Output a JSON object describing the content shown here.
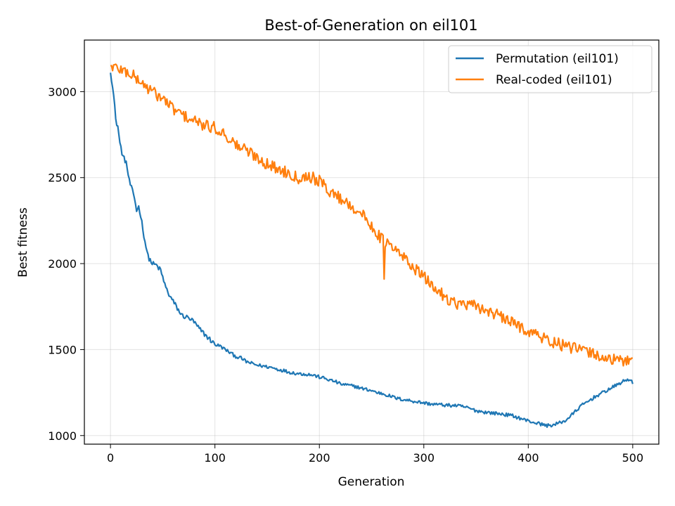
{
  "chart_data": {
    "type": "line",
    "title": "Best-of-Generation on eil101",
    "xlabel": "Generation",
    "ylabel": "Best fitness",
    "xlim": [
      -25,
      525
    ],
    "ylim": [
      950,
      3300
    ],
    "xticks": [
      0,
      100,
      200,
      300,
      400,
      500
    ],
    "yticks": [
      1000,
      1500,
      2000,
      2500,
      3000
    ],
    "grid": true,
    "legend_position": "top-right",
    "series": [
      {
        "name": "Permutation (eil101)",
        "color": "#1f77b4",
        "points": [
          [
            0,
            3110
          ],
          [
            2,
            3040
          ],
          [
            4,
            2920
          ],
          [
            5,
            2830
          ],
          [
            7,
            2800
          ],
          [
            9,
            2700
          ],
          [
            12,
            2620
          ],
          [
            15,
            2590
          ],
          [
            18,
            2480
          ],
          [
            21,
            2420
          ],
          [
            23,
            2380
          ],
          [
            25,
            2310
          ],
          [
            27,
            2330
          ],
          [
            29,
            2280
          ],
          [
            31,
            2200
          ],
          [
            33,
            2130
          ],
          [
            36,
            2040
          ],
          [
            40,
            2000
          ],
          [
            44,
            1990
          ],
          [
            48,
            1960
          ],
          [
            50,
            1920
          ],
          [
            53,
            1860
          ],
          [
            56,
            1820
          ],
          [
            60,
            1780
          ],
          [
            64,
            1740
          ],
          [
            68,
            1700
          ],
          [
            72,
            1690
          ],
          [
            76,
            1680
          ],
          [
            80,
            1660
          ],
          [
            85,
            1620
          ],
          [
            90,
            1590
          ],
          [
            95,
            1560
          ],
          [
            100,
            1530
          ],
          [
            105,
            1520
          ],
          [
            110,
            1500
          ],
          [
            115,
            1480
          ],
          [
            120,
            1460
          ],
          [
            125,
            1450
          ],
          [
            130,
            1430
          ],
          [
            135,
            1420
          ],
          [
            140,
            1410
          ],
          [
            145,
            1405
          ],
          [
            150,
            1400
          ],
          [
            155,
            1395
          ],
          [
            160,
            1385
          ],
          [
            165,
            1380
          ],
          [
            170,
            1370
          ],
          [
            175,
            1365
          ],
          [
            180,
            1360
          ],
          [
            185,
            1358
          ],
          [
            190,
            1355
          ],
          [
            193,
            1352
          ],
          [
            196,
            1348
          ],
          [
            200,
            1340
          ],
          [
            205,
            1333
          ],
          [
            210,
            1322
          ],
          [
            215,
            1315
          ],
          [
            220,
            1300
          ],
          [
            225,
            1295
          ],
          [
            230,
            1290
          ],
          [
            235,
            1285
          ],
          [
            240,
            1275
          ],
          [
            245,
            1268
          ],
          [
            250,
            1262
          ],
          [
            255,
            1250
          ],
          [
            260,
            1245
          ],
          [
            265,
            1235
          ],
          [
            270,
            1225
          ],
          [
            275,
            1215
          ],
          [
            280,
            1210
          ],
          [
            285,
            1205
          ],
          [
            290,
            1200
          ],
          [
            295,
            1195
          ],
          [
            300,
            1190
          ],
          [
            305,
            1185
          ],
          [
            310,
            1182
          ],
          [
            315,
            1180
          ],
          [
            320,
            1177
          ],
          [
            325,
            1175
          ],
          [
            330,
            1175
          ],
          [
            335,
            1170
          ],
          [
            340,
            1165
          ],
          [
            345,
            1155
          ],
          [
            350,
            1145
          ],
          [
            355,
            1140
          ],
          [
            360,
            1135
          ],
          [
            365,
            1132
          ],
          [
            370,
            1128
          ],
          [
            375,
            1125
          ],
          [
            380,
            1120
          ],
          [
            385,
            1115
          ],
          [
            390,
            1105
          ],
          [
            395,
            1095
          ],
          [
            400,
            1085
          ],
          [
            405,
            1077
          ],
          [
            410,
            1070
          ],
          [
            415,
            1062
          ],
          [
            418,
            1058
          ],
          [
            420,
            1060
          ],
          [
            425,
            1062
          ],
          [
            430,
            1075
          ],
          [
            435,
            1085
          ],
          [
            440,
            1110
          ],
          [
            445,
            1140
          ],
          [
            450,
            1170
          ],
          [
            455,
            1190
          ],
          [
            460,
            1210
          ],
          [
            465,
            1230
          ],
          [
            470,
            1245
          ],
          [
            475,
            1262
          ],
          [
            480,
            1278
          ],
          [
            485,
            1295
          ],
          [
            490,
            1312
          ],
          [
            495,
            1325
          ],
          [
            498,
            1328
          ],
          [
            500,
            1300
          ]
        ],
        "noise": 25
      },
      {
        "name": "Real-coded (eil101)",
        "color": "#ff7f0e",
        "points": [
          [
            0,
            3150
          ],
          [
            10,
            3130
          ],
          [
            20,
            3100
          ],
          [
            30,
            3050
          ],
          [
            40,
            3000
          ],
          [
            50,
            2960
          ],
          [
            60,
            2900
          ],
          [
            70,
            2860
          ],
          [
            80,
            2830
          ],
          [
            90,
            2800
          ],
          [
            100,
            2790
          ],
          [
            110,
            2750
          ],
          [
            120,
            2690
          ],
          [
            130,
            2660
          ],
          [
            140,
            2620
          ],
          [
            150,
            2580
          ],
          [
            160,
            2550
          ],
          [
            170,
            2530
          ],
          [
            180,
            2500
          ],
          [
            190,
            2510
          ],
          [
            200,
            2480
          ],
          [
            210,
            2420
          ],
          [
            220,
            2380
          ],
          [
            230,
            2340
          ],
          [
            240,
            2290
          ],
          [
            250,
            2220
          ],
          [
            260,
            2140
          ],
          [
            270,
            2090
          ],
          [
            280,
            2040
          ],
          [
            290,
            1980
          ],
          [
            300,
            1920
          ],
          [
            310,
            1860
          ],
          [
            320,
            1810
          ],
          [
            330,
            1770
          ],
          [
            340,
            1760
          ],
          [
            350,
            1750
          ],
          [
            360,
            1730
          ],
          [
            370,
            1700
          ],
          [
            380,
            1670
          ],
          [
            390,
            1640
          ],
          [
            400,
            1610
          ],
          [
            410,
            1580
          ],
          [
            420,
            1550
          ],
          [
            430,
            1530
          ],
          [
            440,
            1510
          ],
          [
            450,
            1500
          ],
          [
            460,
            1480
          ],
          [
            470,
            1460
          ],
          [
            480,
            1440
          ],
          [
            490,
            1430
          ],
          [
            500,
            1450
          ]
        ],
        "noise": 70
      }
    ]
  }
}
